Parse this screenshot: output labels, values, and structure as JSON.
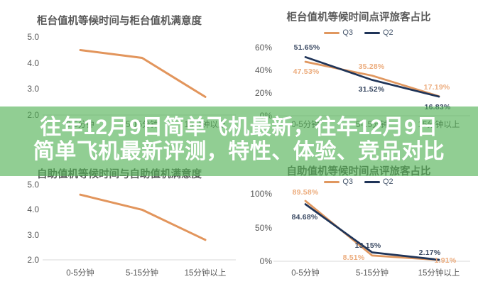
{
  "overlay": {
    "line1": "往年12月9日简单飞机最新，往年12月9日",
    "line2": "简单飞机最新评测，特性、体验、竞品对比",
    "bg_color": "#4DB050",
    "bg_style": "background:rgba(77,176,80,0.62)",
    "text_color": "#FFFFFF"
  },
  "colors": {
    "q3_orange": "#E0975F",
    "q2_navy": "#1F3458",
    "orange_label": "#ECAC7D",
    "navy_label": "#3C4B64",
    "axis_text": "#595959",
    "baseline": "#D9D9D9"
  },
  "chart_data": [
    {
      "type": "line",
      "title": "柜台值机等候时间与柜台值机满意度",
      "categories": [
        "0-5分钟",
        "5-15分钟",
        "15分钟以上"
      ],
      "xlabel": "",
      "ylabel": "",
      "ylim": [
        2.0,
        5.0
      ],
      "grid": false,
      "legend_position": null,
      "yticks": [
        {
          "label": "5.0",
          "value": 5.0
        },
        {
          "label": "4.0",
          "value": 4.0
        },
        {
          "label": "3.0",
          "value": 3.0
        },
        {
          "label": "2.0",
          "value": 2.0
        }
      ],
      "series": [
        {
          "name": null,
          "color": "#E2955C",
          "label_color": null,
          "values": [
            4.5,
            4.2,
            2.7
          ],
          "labels": []
        }
      ]
    },
    {
      "type": "line",
      "title": "柜台值机等候时间点评旅客占比",
      "categories": [
        "0-5分钟",
        "5-15分钟",
        "15分钟以上"
      ],
      "xlabel": "",
      "ylabel": "",
      "ylim": [
        0,
        65
      ],
      "grid": false,
      "legend_position": "top",
      "yticks": [
        {
          "label": "60%",
          "value": 60
        },
        {
          "label": "40%",
          "value": 40
        },
        {
          "label": "20%",
          "value": 20
        },
        {
          "label": "0%",
          "value": 0
        }
      ],
      "series": [
        {
          "name": "Q3",
          "color": "#E0975F",
          "label_color": "#ECAC7D",
          "values": [
            47.53,
            35.28,
            17.19
          ],
          "labels": [
            {
              "text": "47.53%",
              "dx": 1,
              "dy": 14
            },
            {
              "text": "35.28%",
              "dx": -1,
              "dy": -13
            },
            {
              "text": "17.19%",
              "dx": -3,
              "dy": -13
            }
          ]
        },
        {
          "name": "Q2",
          "color": "#1F3458",
          "label_color": "#3C4B64",
          "values": [
            51.65,
            31.52,
            16.83
          ],
          "labels": [
            {
              "text": "51.65%",
              "dx": 2,
              "dy": -13
            },
            {
              "text": "31.52%",
              "dx": -1,
              "dy": 13
            },
            {
              "text": "16.83%",
              "dx": -2,
              "dy": 15
            }
          ]
        }
      ]
    },
    {
      "type": "line",
      "title": "自助值机等候时间与自助值机满意度",
      "categories": [
        "0-5分钟",
        "5-15分钟",
        "15分钟以上"
      ],
      "xlabel": "",
      "ylabel": "",
      "ylim": [
        2.0,
        5.0
      ],
      "grid": false,
      "legend_position": null,
      "yticks": [
        {
          "label": "5.0",
          "value": 5.0
        },
        {
          "label": "4.0",
          "value": 4.0
        },
        {
          "label": "3.0",
          "value": 3.0
        },
        {
          "label": "2.0",
          "value": 2.0
        }
      ],
      "series": [
        {
          "name": null,
          "color": "#E2955C",
          "label_color": null,
          "values": [
            4.6,
            4.0,
            2.8
          ],
          "labels": []
        }
      ]
    },
    {
      "type": "line",
      "title": "自助值机等候时间点评旅客占比",
      "categories": [
        "0-5分钟",
        "5-15分钟",
        "15分钟以上"
      ],
      "xlabel": "",
      "ylabel": "",
      "ylim": [
        0,
        105
      ],
      "grid": false,
      "legend_position": "top",
      "yticks": [
        {
          "label": "100%",
          "value": 100
        },
        {
          "label": "50%",
          "value": 50
        },
        {
          "label": "0%",
          "value": 0
        }
      ],
      "series": [
        {
          "name": "Q3",
          "color": "#E0975F",
          "label_color": "#ECAC7D",
          "values": [
            89.58,
            8.51,
            1.91
          ],
          "labels": [
            {
              "text": "89.58%",
              "dx": 0,
              "dy": -12
            },
            {
              "text": "8.51%",
              "dx": -26,
              "dy": 3
            },
            {
              "text": "1.91%",
              "dx": 9,
              "dy": 1
            }
          ]
        },
        {
          "name": "Q2",
          "color": "#1F3458",
          "label_color": "#3C4B64",
          "values": [
            84.68,
            13.15,
            2.17
          ],
          "labels": [
            {
              "text": "84.68%",
              "dx": -1,
              "dy": 18
            },
            {
              "text": "13.15%",
              "dx": -6,
              "dy": -10
            },
            {
              "text": "2.17%",
              "dx": -13,
              "dy": -10
            }
          ]
        }
      ]
    }
  ]
}
